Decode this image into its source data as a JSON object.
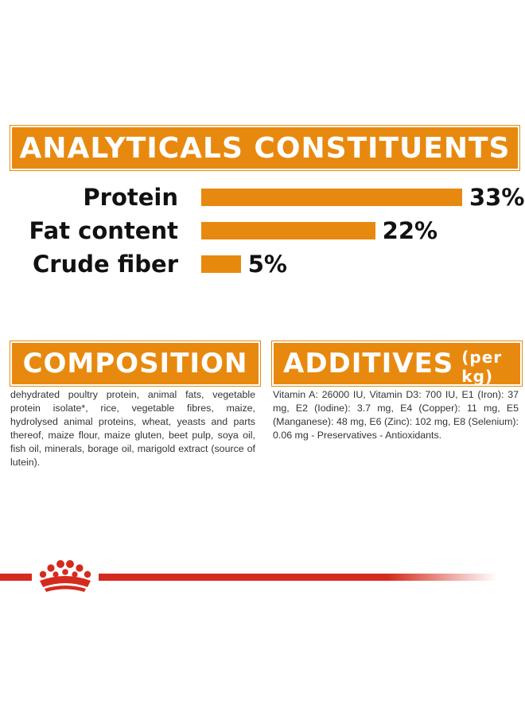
{
  "analytics": {
    "title": "ANALYTICALS CONSTITUENTS",
    "rows": [
      {
        "label": "Protein",
        "value_text": "33%",
        "value": 33
      },
      {
        "label": "Fat content",
        "value_text": "22%",
        "value": 22
      },
      {
        "label": "Crude fiber",
        "value_text": "5%",
        "value": 5
      }
    ]
  },
  "composition": {
    "title": "COMPOSITION",
    "text": "dehydrated poultry protein, animal fats, vegetable protein isolate*, rice, vegetable fibres, maize, hydrolysed animal proteins, wheat, yeasts and parts thereof, maize flour, maize gluten, beet pulp, soya oil, fish oil, minerals, borage oil, marigold extract (source of lutein)."
  },
  "additives": {
    "title": "ADDITIVES",
    "unit": "(per kg)",
    "text": "Vitamin A: 26000 IU, Vitamin D3: 700 IU, E1 (Iron): 37 mg, E2 (Iodine): 3.7 mg, E4 (Copper): 11 mg, E5 (Manganese): 48 mg, E6 (Zinc): 102 mg, E8 (Selenium): 0.06 mg - Preservatives - Antioxidants."
  },
  "colors": {
    "accent": "#e8890f",
    "brand_red": "#d52b1e"
  },
  "icons": {
    "footer": "crown-icon"
  }
}
